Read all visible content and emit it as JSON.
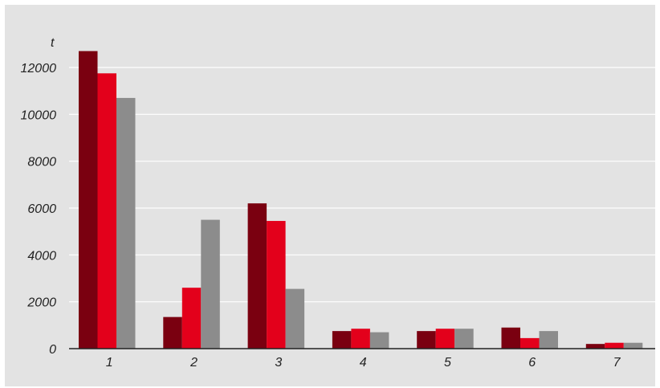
{
  "chart_data": {
    "type": "bar",
    "title": "",
    "xlabel": "",
    "ylabel": "t",
    "ylim": [
      0,
      13000
    ],
    "yticks": [
      0,
      2000,
      4000,
      6000,
      8000,
      10000,
      12000
    ],
    "categories": [
      "1",
      "2",
      "3",
      "4",
      "5",
      "6",
      "7"
    ],
    "series": [
      {
        "color": "#7a0010",
        "values": [
          12700,
          1350,
          6200,
          750,
          750,
          900,
          200
        ]
      },
      {
        "color": "#e3001b",
        "values": [
          11750,
          2600,
          5450,
          850,
          850,
          450,
          250
        ]
      },
      {
        "color": "#8c8c8c",
        "values": [
          10700,
          5500,
          2550,
          700,
          850,
          750,
          250
        ]
      }
    ],
    "grid": true,
    "legend": "none"
  }
}
